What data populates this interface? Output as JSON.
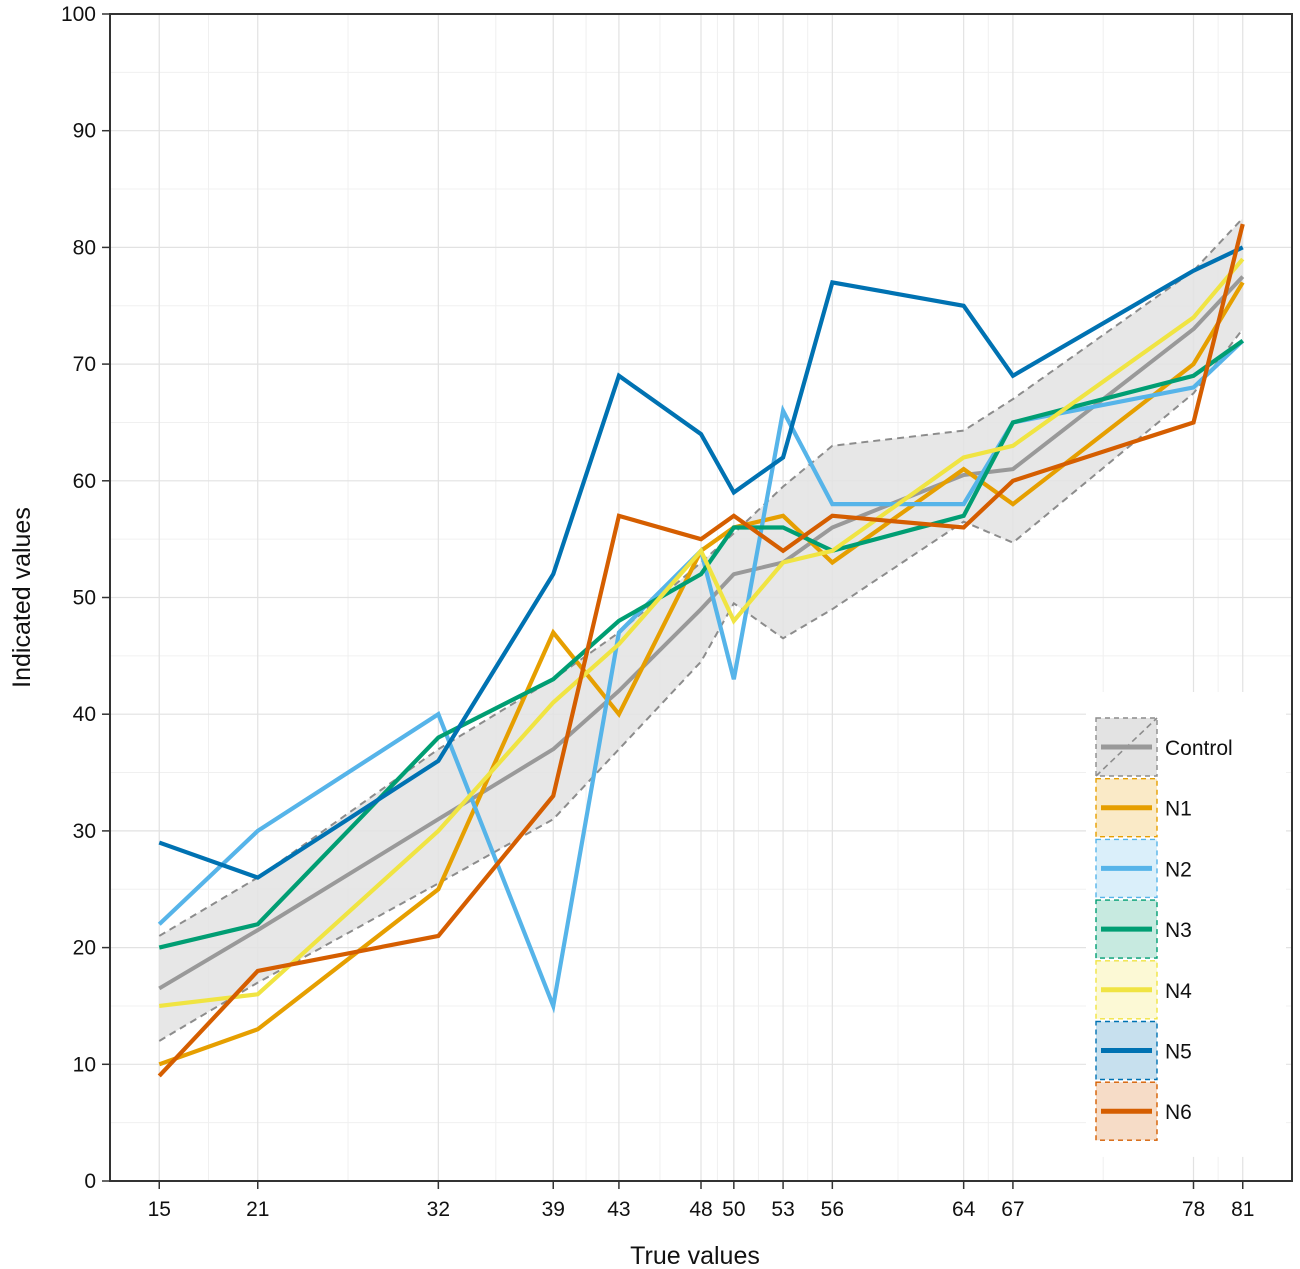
{
  "chart_data": {
    "type": "line",
    "xlabel": "True values",
    "ylabel": "Indicated values",
    "xlim": [
      12,
      84
    ],
    "ylim": [
      0,
      100
    ],
    "x": [
      15,
      21,
      32,
      39,
      43,
      48,
      50,
      53,
      56,
      64,
      67,
      78,
      81
    ],
    "x_tick_labels": [
      "15",
      "21",
      "32",
      "39",
      "43",
      "48",
      "50",
      "53",
      "56",
      "64",
      "67",
      "78",
      "81"
    ],
    "y_ticks": [
      0,
      10,
      20,
      30,
      40,
      50,
      60,
      70,
      80,
      90,
      100
    ],
    "y_tick_labels": [
      "0",
      "10",
      "20",
      "30",
      "40",
      "50",
      "60",
      "70",
      "80",
      "90",
      "100"
    ],
    "grid": true,
    "legend_position": "bottom-right",
    "control_band": {
      "name": "Control",
      "mean": [
        16.5,
        21.5,
        31,
        37,
        42,
        49,
        52,
        53,
        56,
        60.5,
        61,
        73,
        77.5
      ],
      "upper": [
        21,
        26,
        37,
        43,
        47,
        53,
        55.5,
        59.5,
        63,
        64.3,
        67,
        78,
        82.5
      ],
      "lower": [
        12,
        17,
        25.5,
        31,
        37,
        44.5,
        49.5,
        46.5,
        49,
        56.5,
        54.7,
        67.5,
        73
      ]
    },
    "series": [
      {
        "name": "N1",
        "color": "#E69F00",
        "values": [
          10,
          13,
          25,
          47,
          40,
          54,
          56,
          57,
          53,
          61,
          58,
          70,
          77
        ]
      },
      {
        "name": "N2",
        "color": "#56B4E9",
        "values": [
          22,
          30,
          40,
          15,
          47,
          54,
          43,
          66,
          58,
          58,
          65,
          68,
          72
        ]
      },
      {
        "name": "N3",
        "color": "#009E73",
        "values": [
          20,
          22,
          38,
          43,
          48,
          52,
          56,
          56,
          54,
          57,
          65,
          69,
          72
        ]
      },
      {
        "name": "N4",
        "color": "#F0E442",
        "values": [
          15,
          16,
          30,
          41,
          46,
          54,
          48,
          53,
          54,
          62,
          63,
          74,
          79
        ]
      },
      {
        "name": "N5",
        "color": "#0072B2",
        "values": [
          29,
          26,
          36,
          52,
          69,
          64,
          59,
          62,
          77,
          75,
          69,
          78,
          80
        ]
      },
      {
        "name": "N6",
        "color": "#D55E00",
        "values": [
          9,
          18,
          21,
          33,
          57,
          55,
          57,
          54,
          57,
          56,
          60,
          65,
          82
        ]
      }
    ],
    "control_color": "#999999",
    "legend": [
      "Control",
      "N1",
      "N2",
      "N3",
      "N4",
      "N5",
      "N6"
    ]
  }
}
